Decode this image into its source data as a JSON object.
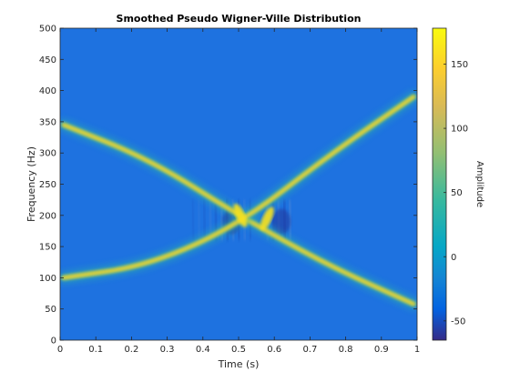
{
  "chart_data": {
    "type": "heatmap",
    "title": "Smoothed Pseudo Wigner-Ville Distribution",
    "xlabel": "Time (s)",
    "ylabel": "Frequency (Hz)",
    "xlim": [
      0,
      1
    ],
    "ylim": [
      0,
      500
    ],
    "xticks": [
      "0",
      "0.1",
      "0.2",
      "0.3",
      "0.4",
      "0.5",
      "0.6",
      "0.7",
      "0.8",
      "0.9",
      "1"
    ],
    "yticks": [
      "0",
      "50",
      "100",
      "150",
      "200",
      "250",
      "300",
      "350",
      "400",
      "450",
      "500"
    ],
    "colorbar": {
      "label": "Amplitude",
      "range": [
        -65,
        178
      ],
      "ticks": [
        "-50",
        "0",
        "50",
        "100",
        "150"
      ],
      "colormap": "parula"
    },
    "background_value": 5,
    "components": [
      {
        "name": "",
        "path": [
          [
            0.01,
            345
          ],
          [
            0.25,
            290
          ],
          [
            0.5,
            200
          ],
          [
            0.75,
            120
          ],
          [
            0.99,
            58
          ]
        ],
        "peak": 150
      },
      {
        "name": "",
        "path": [
          [
            0.01,
            100
          ],
          [
            0.25,
            120
          ],
          [
            0.5,
            185
          ],
          [
            0.75,
            295
          ],
          [
            0.99,
            390
          ]
        ],
        "peak": 130
      }
    ]
  }
}
